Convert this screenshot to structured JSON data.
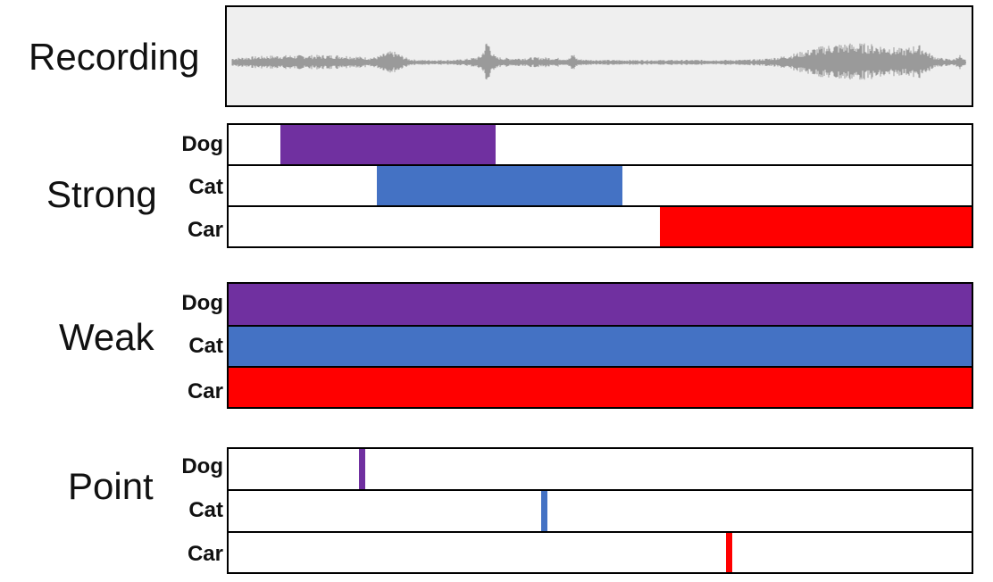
{
  "sections": {
    "recording": {
      "label": "Recording"
    },
    "strong": {
      "label": "Strong",
      "rows": [
        {
          "label": "Dog",
          "color": "#7030a0",
          "start": 0.07,
          "end": 0.36
        },
        {
          "label": "Cat",
          "color": "#4472c4",
          "start": 0.2,
          "end": 0.53
        },
        {
          "label": "Car",
          "color": "#ff0000",
          "start": 0.58,
          "end": 1.0
        }
      ]
    },
    "weak": {
      "label": "Weak",
      "rows": [
        {
          "label": "Dog",
          "color": "#7030a0",
          "start": 0.0,
          "end": 1.0
        },
        {
          "label": "Cat",
          "color": "#4472c4",
          "start": 0.0,
          "end": 1.0
        },
        {
          "label": "Car",
          "color": "#ff0000",
          "start": 0.0,
          "end": 1.0
        }
      ]
    },
    "point": {
      "label": "Point",
      "rows": [
        {
          "label": "Dog",
          "color": "#7030a0",
          "at": 0.176
        },
        {
          "label": "Cat",
          "color": "#4472c4",
          "at": 0.421
        },
        {
          "label": "Car",
          "color": "#ff0000",
          "at": 0.67
        }
      ]
    }
  },
  "waveform_color": "#9a9a9a"
}
